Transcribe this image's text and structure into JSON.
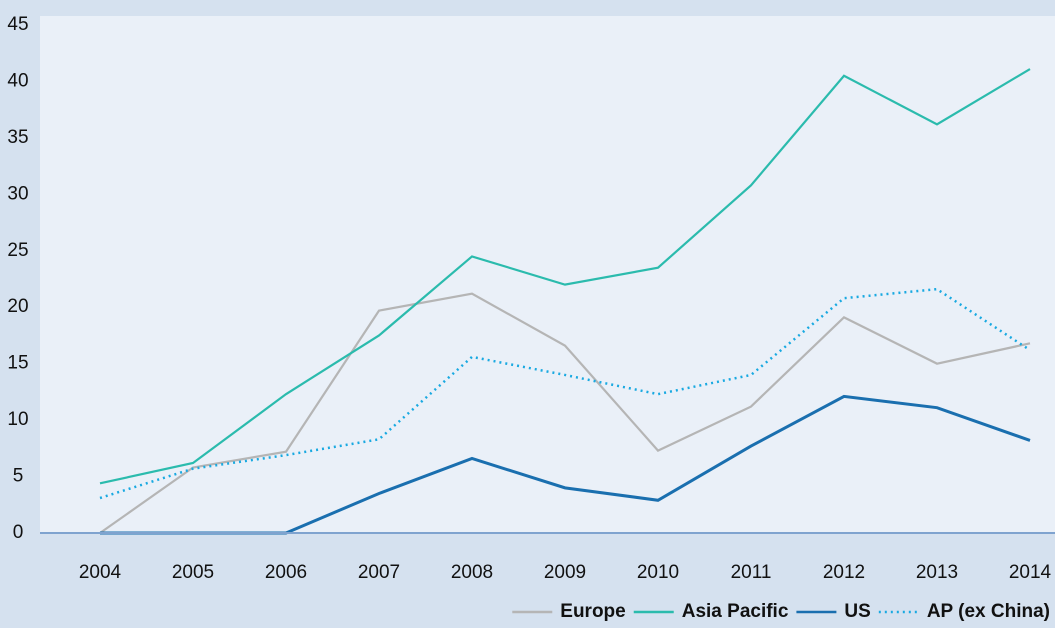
{
  "chart_data": {
    "type": "line",
    "categories": [
      "2004",
      "2005",
      "2006",
      "2007",
      "2008",
      "2009",
      "2010",
      "2011",
      "2012",
      "2013",
      "2014"
    ],
    "series": [
      {
        "name": "Europe",
        "color": "#b5b5b5",
        "values": [
          0,
          5.8,
          7.2,
          19.7,
          21.2,
          16.6,
          7.3,
          11.2,
          19.1,
          15.0,
          16.8
        ]
      },
      {
        "name": "Asia Pacific",
        "color": "#2bbbad",
        "values": [
          4.4,
          6.2,
          12.3,
          17.5,
          24.5,
          22.0,
          23.5,
          30.8,
          40.5,
          36.2,
          41.1
        ]
      },
      {
        "name": "US",
        "color": "#1a6faf",
        "values": [
          0,
          0,
          0,
          3.5,
          6.6,
          4.0,
          2.9,
          7.7,
          12.1,
          11.1,
          8.2
        ]
      },
      {
        "name": "AP (ex China)",
        "color": "#19a9e1",
        "dashed": true,
        "values": [
          3.1,
          5.7,
          6.9,
          8.3,
          15.6,
          14.0,
          12.3,
          14.0,
          20.8,
          21.6,
          16.2
        ]
      }
    ],
    "ylim": [
      0,
      45
    ],
    "yticks": [
      0,
      5,
      10,
      15,
      20,
      25,
      30,
      35,
      40,
      45
    ],
    "legend": "bottom-right"
  }
}
